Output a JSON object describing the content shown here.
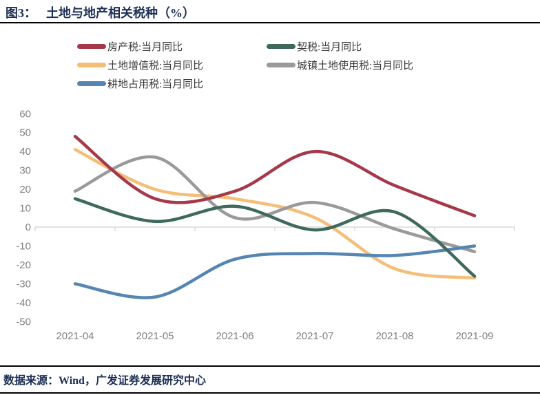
{
  "figure": {
    "title_prefix": "图3：",
    "title": "土地与地产相关税种（%）"
  },
  "legend": {
    "items": [
      {
        "label": "房产税:当月同比",
        "color": "#a5394a"
      },
      {
        "label": "契税:当月同比",
        "color": "#3f695d"
      },
      {
        "label": "土地增值税:当月同比",
        "color": "#f4be78"
      },
      {
        "label": "城镇土地使用税:当月同比",
        "color": "#9a9a9a"
      },
      {
        "label": "耕地占用税:当月同比",
        "color": "#5585b2"
      }
    ]
  },
  "chart_data": {
    "type": "line",
    "title": "土地与地产相关税种（%）",
    "xlabel": "",
    "ylabel": "",
    "x": [
      "2021-04",
      "2021-05",
      "2021-06",
      "2021-07",
      "2021-08",
      "2021-09"
    ],
    "series": [
      {
        "name": "土地增值税:当月同比",
        "color": "#f4be78",
        "values": [
          41,
          20,
          15,
          5,
          -22,
          -27
        ]
      },
      {
        "name": "城镇土地使用税:当月同比",
        "color": "#9a9a9a",
        "values": [
          19,
          37,
          5,
          13,
          -1,
          -13
        ]
      },
      {
        "name": "房产税:当月同比",
        "color": "#a5394a",
        "values": [
          48,
          15,
          19,
          40,
          22,
          6
        ]
      },
      {
        "name": "耕地占用税:当月同比",
        "color": "#5585b2",
        "values": [
          -30,
          -37,
          -17,
          -14,
          -15,
          -10
        ]
      },
      {
        "name": "契税:当月同比",
        "color": "#3f695d",
        "values": [
          15,
          3,
          11,
          -1.5,
          8,
          -26
        ]
      }
    ],
    "ylim": [
      -50,
      60
    ],
    "yticks": [
      60,
      50,
      40,
      30,
      20,
      10,
      0,
      -10,
      -20,
      -30,
      -40,
      -50
    ],
    "grid": "zero-axis-line-only",
    "legend_position": "top-left",
    "line_style": "smooth"
  },
  "source": {
    "text": "数据来源：Wind，广发证券发展研究中心"
  }
}
